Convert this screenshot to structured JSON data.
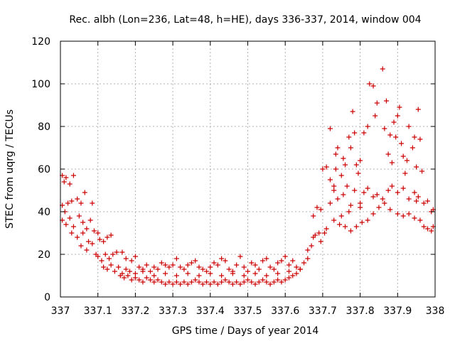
{
  "chart_data": {
    "type": "scatter",
    "title": "Rec. albh (Lon=236, Lat=48, h=HE), days 336-337, 2014, window 004",
    "xlabel": "GPS time / Days of year 2014",
    "ylabel": "STEC from uqrg / TECUs",
    "xlim": [
      337,
      338
    ],
    "ylim": [
      0,
      120
    ],
    "xticks": [
      337,
      337.1,
      337.2,
      337.3,
      337.4,
      337.5,
      337.6,
      337.7,
      337.8,
      337.9,
      338
    ],
    "xtick_labels": [
      "337",
      "337.1",
      "337.2",
      "337.3",
      "337.4",
      "337.5",
      "337.6",
      "337.7",
      "337.8",
      "337.9",
      "338"
    ],
    "yticks": [
      0,
      20,
      40,
      60,
      80,
      100,
      120
    ],
    "ytick_labels": [
      "0",
      "20",
      "40",
      "60",
      "80",
      "100",
      "120"
    ],
    "grid": true,
    "marker": "+",
    "colors": {
      "points": "#cc0000"
    },
    "points": [
      [
        337.005,
        57
      ],
      [
        337.01,
        54
      ],
      [
        337.015,
        56
      ],
      [
        337.025,
        53
      ],
      [
        337.035,
        57
      ],
      [
        337.005,
        43
      ],
      [
        337.012,
        40
      ],
      [
        337.02,
        44
      ],
      [
        337.03,
        45
      ],
      [
        337.045,
        46
      ],
      [
        337.055,
        44
      ],
      [
        337.065,
        49
      ],
      [
        337.085,
        44
      ],
      [
        337.005,
        36
      ],
      [
        337.015,
        34
      ],
      [
        337.025,
        37
      ],
      [
        337.035,
        33
      ],
      [
        337.05,
        38
      ],
      [
        337.06,
        35
      ],
      [
        337.07,
        32
      ],
      [
        337.08,
        36
      ],
      [
        337.03,
        30
      ],
      [
        337.045,
        28
      ],
      [
        337.06,
        30
      ],
      [
        337.075,
        26
      ],
      [
        337.09,
        31
      ],
      [
        337.1,
        30
      ],
      [
        337.055,
        24
      ],
      [
        337.07,
        22
      ],
      [
        337.085,
        25
      ],
      [
        337.095,
        20
      ],
      [
        337.105,
        27
      ],
      [
        337.115,
        26
      ],
      [
        337.125,
        28
      ],
      [
        337.135,
        29
      ],
      [
        337.1,
        19
      ],
      [
        337.11,
        17
      ],
      [
        337.12,
        20
      ],
      [
        337.13,
        18
      ],
      [
        337.14,
        20
      ],
      [
        337.15,
        21
      ],
      [
        337.165,
        21
      ],
      [
        337.175,
        18
      ],
      [
        337.115,
        14
      ],
      [
        337.125,
        13
      ],
      [
        337.135,
        15
      ],
      [
        337.145,
        12
      ],
      [
        337.155,
        14
      ],
      [
        337.165,
        11
      ],
      [
        337.175,
        13
      ],
      [
        337.185,
        12
      ],
      [
        337.19,
        17
      ],
      [
        337.2,
        19
      ],
      [
        337.21,
        14
      ],
      [
        337.22,
        13
      ],
      [
        337.23,
        15
      ],
      [
        337.24,
        12
      ],
      [
        337.25,
        14
      ],
      [
        337.26,
        13
      ],
      [
        337.16,
        10
      ],
      [
        337.17,
        9
      ],
      [
        337.18,
        10
      ],
      [
        337.19,
        8
      ],
      [
        337.2,
        9
      ],
      [
        337.21,
        8
      ],
      [
        337.22,
        7
      ],
      [
        337.23,
        9
      ],
      [
        337.24,
        8
      ],
      [
        337.25,
        7
      ],
      [
        337.26,
        8
      ],
      [
        337.27,
        7
      ],
      [
        337.28,
        6
      ],
      [
        337.29,
        7
      ],
      [
        337.3,
        6
      ],
      [
        337.31,
        7
      ],
      [
        337.32,
        6
      ],
      [
        337.33,
        7
      ],
      [
        337.34,
        6
      ],
      [
        337.35,
        7
      ],
      [
        337.36,
        8
      ],
      [
        337.37,
        7
      ],
      [
        337.38,
        6
      ],
      [
        337.39,
        7
      ],
      [
        337.4,
        6
      ],
      [
        337.41,
        7
      ],
      [
        337.42,
        6
      ],
      [
        337.43,
        7
      ],
      [
        337.44,
        8
      ],
      [
        337.45,
        7
      ],
      [
        337.46,
        6
      ],
      [
        337.47,
        7
      ],
      [
        337.48,
        6
      ],
      [
        337.49,
        7
      ],
      [
        337.5,
        8
      ],
      [
        337.51,
        7
      ],
      [
        337.52,
        6
      ],
      [
        337.53,
        7
      ],
      [
        337.54,
        8
      ],
      [
        337.55,
        7
      ],
      [
        337.56,
        6
      ],
      [
        337.57,
        7
      ],
      [
        337.58,
        8
      ],
      [
        337.59,
        7
      ],
      [
        337.6,
        8
      ],
      [
        337.61,
        9
      ],
      [
        337.62,
        10
      ],
      [
        337.63,
        11
      ],
      [
        337.27,
        16
      ],
      [
        337.28,
        15
      ],
      [
        337.29,
        14
      ],
      [
        337.3,
        15
      ],
      [
        337.31,
        18
      ],
      [
        337.32,
        14
      ],
      [
        337.33,
        13
      ],
      [
        337.34,
        15
      ],
      [
        337.35,
        16
      ],
      [
        337.36,
        17
      ],
      [
        337.37,
        14
      ],
      [
        337.38,
        13
      ],
      [
        337.39,
        12
      ],
      [
        337.4,
        14
      ],
      [
        337.41,
        16
      ],
      [
        337.42,
        15
      ],
      [
        337.43,
        18
      ],
      [
        337.44,
        17
      ],
      [
        337.45,
        13
      ],
      [
        337.46,
        12
      ],
      [
        337.47,
        15
      ],
      [
        337.48,
        19
      ],
      [
        337.49,
        14
      ],
      [
        337.5,
        12
      ],
      [
        337.51,
        16
      ],
      [
        337.52,
        15
      ],
      [
        337.53,
        13
      ],
      [
        337.54,
        17
      ],
      [
        337.55,
        18
      ],
      [
        337.56,
        14
      ],
      [
        337.57,
        13
      ],
      [
        337.58,
        16
      ],
      [
        337.59,
        17
      ],
      [
        337.6,
        19
      ],
      [
        337.61,
        15
      ],
      [
        337.62,
        17
      ],
      [
        337.63,
        14
      ],
      [
        337.64,
        13
      ],
      [
        337.65,
        16
      ],
      [
        337.66,
        18
      ],
      [
        337.2,
        11
      ],
      [
        337.22,
        12
      ],
      [
        337.25,
        10
      ],
      [
        337.28,
        11
      ],
      [
        337.31,
        10
      ],
      [
        337.34,
        11
      ],
      [
        337.37,
        10
      ],
      [
        337.4,
        11
      ],
      [
        337.43,
        10
      ],
      [
        337.46,
        11
      ],
      [
        337.49,
        10
      ],
      [
        337.52,
        11
      ],
      [
        337.55,
        10
      ],
      [
        337.58,
        11
      ],
      [
        337.61,
        12
      ],
      [
        337.64,
        13
      ],
      [
        337.66,
        22
      ],
      [
        337.67,
        24
      ],
      [
        337.675,
        28
      ],
      [
        337.68,
        29
      ],
      [
        337.69,
        30
      ],
      [
        337.695,
        26
      ],
      [
        337.705,
        30
      ],
      [
        337.71,
        32
      ],
      [
        337.675,
        38
      ],
      [
        337.685,
        42
      ],
      [
        337.695,
        41
      ],
      [
        337.7,
        60
      ],
      [
        337.71,
        61
      ],
      [
        337.72,
        55
      ],
      [
        337.73,
        52
      ],
      [
        337.735,
        60
      ],
      [
        337.72,
        79
      ],
      [
        337.735,
        67
      ],
      [
        337.74,
        70
      ],
      [
        337.75,
        57
      ],
      [
        337.755,
        65
      ],
      [
        337.76,
        62
      ],
      [
        337.77,
        75
      ],
      [
        337.775,
        70
      ],
      [
        337.78,
        87
      ],
      [
        337.785,
        77
      ],
      [
        337.79,
        62
      ],
      [
        337.795,
        58
      ],
      [
        337.8,
        64
      ],
      [
        337.81,
        77
      ],
      [
        337.82,
        80
      ],
      [
        337.825,
        100
      ],
      [
        337.835,
        99
      ],
      [
        337.84,
        85
      ],
      [
        337.845,
        91
      ],
      [
        337.86,
        107
      ],
      [
        337.865,
        79
      ],
      [
        337.87,
        92
      ],
      [
        337.875,
        67
      ],
      [
        337.88,
        76
      ],
      [
        337.885,
        63
      ],
      [
        337.89,
        82
      ],
      [
        337.895,
        75
      ],
      [
        337.9,
        85
      ],
      [
        337.905,
        89
      ],
      [
        337.91,
        72
      ],
      [
        337.915,
        66
      ],
      [
        337.92,
        58
      ],
      [
        337.925,
        64
      ],
      [
        337.93,
        80
      ],
      [
        337.94,
        70
      ],
      [
        337.945,
        75
      ],
      [
        337.95,
        61
      ],
      [
        337.955,
        88
      ],
      [
        337.96,
        74
      ],
      [
        337.965,
        59
      ],
      [
        337.72,
        44
      ],
      [
        337.73,
        50
      ],
      [
        337.74,
        46
      ],
      [
        337.755,
        48
      ],
      [
        337.765,
        52
      ],
      [
        337.775,
        43
      ],
      [
        337.785,
        50
      ],
      [
        337.8,
        44
      ],
      [
        337.81,
        49
      ],
      [
        337.82,
        51
      ],
      [
        337.835,
        47
      ],
      [
        337.845,
        48
      ],
      [
        337.86,
        46
      ],
      [
        337.875,
        50
      ],
      [
        337.885,
        52
      ],
      [
        337.9,
        49
      ],
      [
        337.915,
        51
      ],
      [
        337.93,
        46
      ],
      [
        337.945,
        49
      ],
      [
        337.955,
        47
      ],
      [
        337.97,
        44
      ],
      [
        337.98,
        45
      ],
      [
        337.99,
        40
      ],
      [
        337.995,
        41
      ],
      [
        337.73,
        36
      ],
      [
        337.745,
        34
      ],
      [
        337.76,
        33
      ],
      [
        337.775,
        31
      ],
      [
        337.79,
        33
      ],
      [
        337.805,
        35
      ],
      [
        337.82,
        36
      ],
      [
        337.835,
        39
      ],
      [
        337.85,
        42
      ],
      [
        337.865,
        44
      ],
      [
        337.88,
        41
      ],
      [
        337.9,
        39
      ],
      [
        337.915,
        38
      ],
      [
        337.93,
        39
      ],
      [
        337.945,
        37
      ],
      [
        337.96,
        36
      ],
      [
        337.97,
        33
      ],
      [
        337.98,
        32
      ],
      [
        337.99,
        31
      ],
      [
        337.995,
        33
      ],
      [
        337.75,
        38
      ],
      [
        337.77,
        40
      ],
      [
        337.8,
        42
      ],
      [
        337.95,
        45
      ]
    ]
  }
}
